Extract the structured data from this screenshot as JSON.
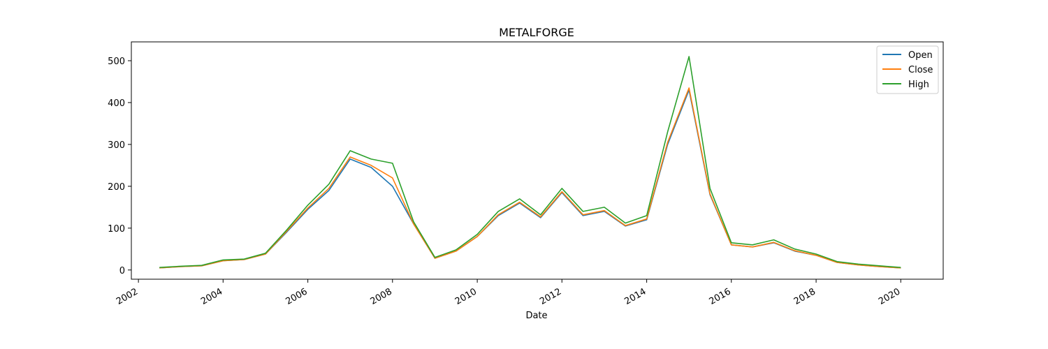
{
  "chart_data": {
    "type": "line",
    "title": "METALFORGE",
    "xlabel": "Date",
    "ylabel": "",
    "x_axis_type": "date",
    "xlim": [
      "2001-11-01",
      "2021-01-01"
    ],
    "ylim": [
      -22,
      545
    ],
    "x_tick_labels": [
      "2002",
      "2004",
      "2006",
      "2008",
      "2010",
      "2012",
      "2014",
      "2016",
      "2018",
      "2020"
    ],
    "y_ticks": [
      0,
      100,
      200,
      300,
      400,
      500
    ],
    "grid": false,
    "legend_position": "top-right",
    "x": [
      "2002-07",
      "2003-01",
      "2003-07",
      "2004-01",
      "2004-07",
      "2005-01",
      "2005-07",
      "2006-01",
      "2006-07",
      "2007-01",
      "2007-07",
      "2008-01",
      "2008-07",
      "2009-01",
      "2009-07",
      "2010-01",
      "2010-07",
      "2011-01",
      "2011-07",
      "2012-01",
      "2012-07",
      "2013-01",
      "2013-07",
      "2014-01",
      "2014-07",
      "2015-01",
      "2015-07",
      "2016-01",
      "2016-07",
      "2017-01",
      "2017-07",
      "2018-01",
      "2018-07",
      "2019-01",
      "2019-07",
      "2020-01"
    ],
    "series": [
      {
        "name": "Open",
        "color": "#1f77b4",
        "values": [
          5,
          8,
          10,
          22,
          25,
          38,
          90,
          145,
          190,
          265,
          245,
          200,
          110,
          28,
          45,
          80,
          130,
          160,
          125,
          185,
          130,
          140,
          105,
          120,
          300,
          430,
          180,
          60,
          55,
          65,
          45,
          35,
          18,
          12,
          8,
          5
        ]
      },
      {
        "name": "Close",
        "color": "#ff7f0e",
        "values": [
          5,
          8,
          10,
          22,
          25,
          38,
          92,
          148,
          195,
          270,
          250,
          220,
          110,
          28,
          45,
          80,
          132,
          162,
          127,
          187,
          132,
          142,
          106,
          122,
          305,
          435,
          182,
          60,
          55,
          66,
          46,
          35,
          18,
          12,
          8,
          5
        ]
      },
      {
        "name": "High",
        "color": "#2ca02c",
        "values": [
          6,
          9,
          11,
          24,
          26,
          40,
          95,
          155,
          205,
          285,
          265,
          255,
          115,
          30,
          48,
          85,
          140,
          170,
          132,
          195,
          140,
          150,
          112,
          130,
          330,
          510,
          195,
          65,
          60,
          72,
          50,
          38,
          20,
          14,
          10,
          6
        ]
      }
    ]
  }
}
